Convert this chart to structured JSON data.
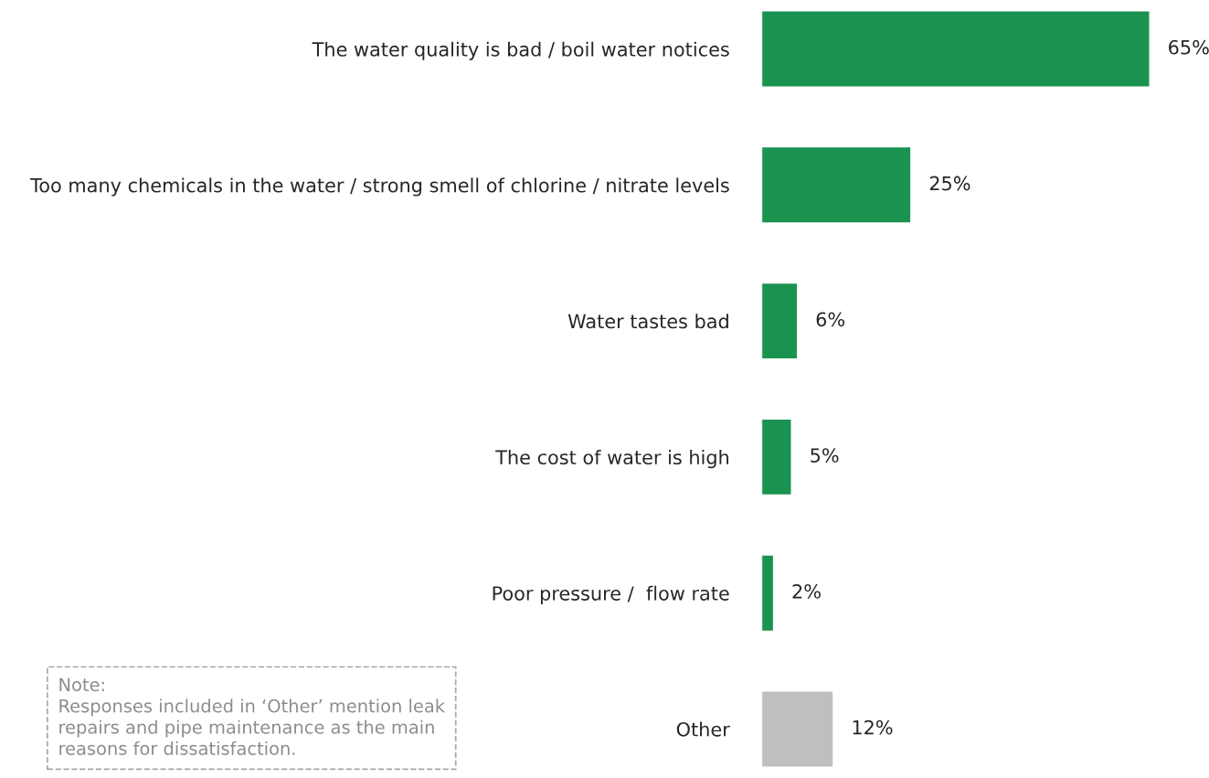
{
  "chart_data": {
    "type": "bar",
    "orientation": "horizontal",
    "categories": [
      "The water quality is bad / boil water notices",
      "Too many chemicals in the water / strong smell of chlorine / nitrate levels",
      "Water tastes bad",
      "The cost of water is high",
      "Poor pressure /  flow rate",
      "Other"
    ],
    "values": [
      65,
      25,
      6,
      5,
      2,
      12
    ],
    "colors": [
      "#1a9250",
      "#1a9250",
      "#1a9250",
      "#1a9250",
      "#1a9250",
      "#bfbfbf"
    ],
    "value_labels": [
      "65%",
      "25%",
      "6%",
      "5%",
      "2%",
      "12%"
    ],
    "annotations": [
      "Note:",
      "Responses included in ‘Other’ mention leak repairs and pipe maintenance as the main reasons for dissatisfaction."
    ],
    "grid": false,
    "legend": false
  }
}
